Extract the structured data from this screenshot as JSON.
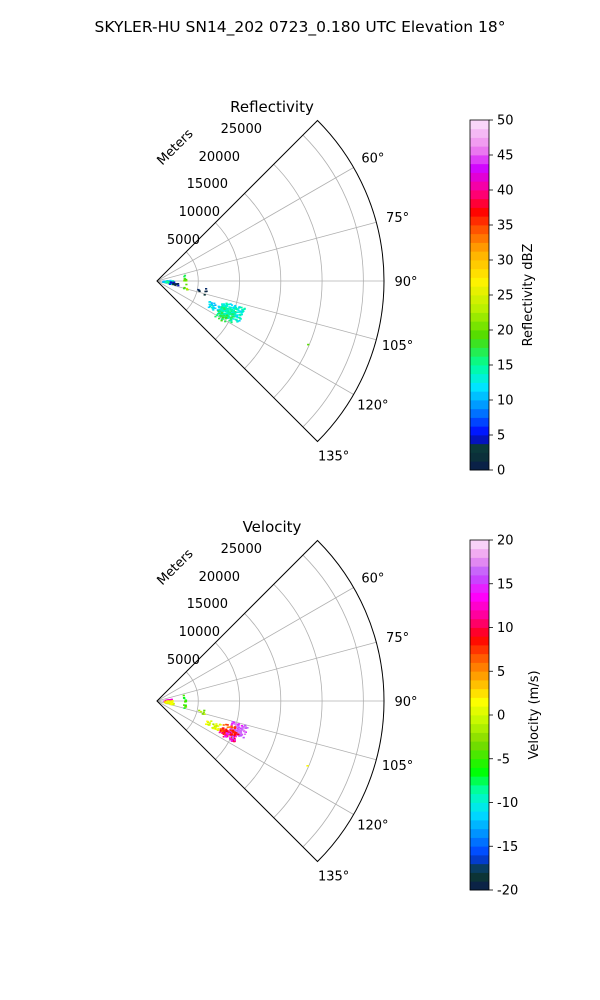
{
  "figure": {
    "title": "SKYLER-HU  SN14_202  0723_0.180 UTC Elevation 18°"
  },
  "panels": [
    {
      "title": "Reflectivity",
      "range_axis_label": "Meters",
      "range_ticks": [
        "5000",
        "10000",
        "15000",
        "20000",
        "25000"
      ],
      "azimuth_ticks": [
        "60°",
        "75°",
        "90°",
        "105°",
        "120°",
        "135°"
      ],
      "colorbar": {
        "label": "Reflectivity dBZ",
        "ticks": [
          "0",
          "5",
          "10",
          "15",
          "20",
          "25",
          "30",
          "35",
          "40",
          "45",
          "50"
        ]
      }
    },
    {
      "title": "Velocity",
      "range_axis_label": "Meters",
      "range_ticks": [
        "5000",
        "10000",
        "15000",
        "20000",
        "25000"
      ],
      "azimuth_ticks": [
        "60°",
        "75°",
        "90°",
        "105°",
        "120°",
        "135°"
      ],
      "colorbar": {
        "label": "Velocity (m/s)",
        "ticks": [
          "-20",
          "-15",
          "-10",
          "-5",
          "0",
          "5",
          "10",
          "15",
          "20"
        ]
      }
    }
  ],
  "chart_data": [
    {
      "type": "polar_ppi",
      "title": "Reflectivity",
      "theta_range_deg": [
        45,
        135
      ],
      "r_range_m": [
        0,
        27500
      ],
      "r_ticks_m": [
        5000,
        10000,
        15000,
        20000,
        25000
      ],
      "theta_ticks_deg": [
        60,
        75,
        90,
        105,
        120,
        135
      ],
      "grid": true,
      "colorbar": {
        "label": "Reflectivity dBZ",
        "range": [
          0,
          50
        ],
        "ticks": [
          0,
          5,
          10,
          15,
          20,
          25,
          30,
          35,
          40,
          45,
          50
        ]
      },
      "clusters": [
        {
          "theta_deg": 89,
          "r_m": 1100,
          "spread_theta": 5,
          "spread_r": 500,
          "count": 30,
          "value_dbz": 10
        },
        {
          "theta_deg": 93,
          "r_m": 1400,
          "spread_theta": 7,
          "spread_r": 500,
          "count": 22,
          "value_dbz": 14
        },
        {
          "theta_deg": 96,
          "r_m": 2000,
          "spread_theta": 6,
          "spread_r": 600,
          "count": 14,
          "value_dbz": 3
        },
        {
          "theta_deg": 82,
          "r_m": 3300,
          "spread_theta": 6,
          "spread_r": 150,
          "count": 5,
          "value_dbz": 18
        },
        {
          "theta_deg": 95,
          "r_m": 3300,
          "spread_theta": 10,
          "spread_r": 150,
          "count": 8,
          "value_dbz": 20
        },
        {
          "theta_deg": 104,
          "r_m": 3500,
          "spread_theta": 3,
          "spread_r": 300,
          "count": 3,
          "value_dbz": 22
        },
        {
          "theta_deg": 103,
          "r_m": 5400,
          "spread_theta": 5,
          "spread_r": 600,
          "count": 7,
          "value_dbz": 2
        },
        {
          "theta_deg": 114,
          "r_m": 7500,
          "spread_theta": 3,
          "spread_r": 900,
          "count": 28,
          "value_dbz": 12
        },
        {
          "theta_deg": 112,
          "r_m": 9600,
          "spread_theta": 5,
          "spread_r": 1400,
          "count": 130,
          "value_dbz": 13
        },
        {
          "theta_deg": 115,
          "r_m": 9200,
          "spread_theta": 4,
          "spread_r": 1000,
          "count": 70,
          "value_dbz": 15
        },
        {
          "theta_deg": 119,
          "r_m": 8800,
          "spread_theta": 3,
          "spread_r": 800,
          "count": 20,
          "value_dbz": 17
        },
        {
          "theta_deg": 113,
          "r_m": 19700,
          "spread_theta": 0.3,
          "spread_r": 80,
          "count": 1,
          "value_dbz": 21
        }
      ]
    },
    {
      "type": "polar_ppi",
      "title": "Velocity",
      "theta_range_deg": [
        45,
        135
      ],
      "r_range_m": [
        0,
        27500
      ],
      "r_ticks_m": [
        5000,
        10000,
        15000,
        20000,
        25000
      ],
      "theta_ticks_deg": [
        60,
        75,
        90,
        105,
        120,
        135
      ],
      "grid": true,
      "colorbar": {
        "label": "Velocity (m/s)",
        "range": [
          -20,
          20
        ],
        "ticks": [
          -20,
          -15,
          -10,
          -5,
          0,
          5,
          10,
          15,
          20
        ]
      },
      "clusters": [
        {
          "theta_deg": 83,
          "r_m": 1200,
          "spread_theta": 4,
          "spread_r": 500,
          "count": 25,
          "value_ms": 13
        },
        {
          "theta_deg": 90,
          "r_m": 1300,
          "spread_theta": 5,
          "spread_r": 500,
          "count": 20,
          "value_ms": 2
        },
        {
          "theta_deg": 97,
          "r_m": 1500,
          "spread_theta": 5,
          "spread_r": 500,
          "count": 18,
          "value_ms": 0
        },
        {
          "theta_deg": 82,
          "r_m": 3300,
          "spread_theta": 6,
          "spread_r": 150,
          "count": 5,
          "value_ms": -6
        },
        {
          "theta_deg": 95,
          "r_m": 3300,
          "spread_theta": 10,
          "spread_r": 150,
          "count": 8,
          "value_ms": -5
        },
        {
          "theta_deg": 103,
          "r_m": 5400,
          "spread_theta": 4,
          "spread_r": 600,
          "count": 6,
          "value_ms": -2
        },
        {
          "theta_deg": 113,
          "r_m": 7200,
          "spread_theta": 3,
          "spread_r": 900,
          "count": 30,
          "value_ms": 0
        },
        {
          "theta_deg": 109,
          "r_m": 10300,
          "spread_theta": 4,
          "spread_r": 1000,
          "count": 80,
          "value_ms": 16
        },
        {
          "theta_deg": 115,
          "r_m": 9400,
          "spread_theta": 3,
          "spread_r": 1100,
          "count": 70,
          "value_ms": 10
        },
        {
          "theta_deg": 112,
          "r_m": 9300,
          "spread_theta": 4,
          "spread_r": 1000,
          "count": 40,
          "value_ms": 7
        },
        {
          "theta_deg": 116,
          "r_m": 9800,
          "spread_theta": 2,
          "spread_r": 700,
          "count": 15,
          "value_ms": 15
        },
        {
          "theta_deg": 113,
          "r_m": 19700,
          "spread_theta": 0.3,
          "spread_r": 80,
          "count": 1,
          "value_ms": 3
        }
      ]
    }
  ]
}
